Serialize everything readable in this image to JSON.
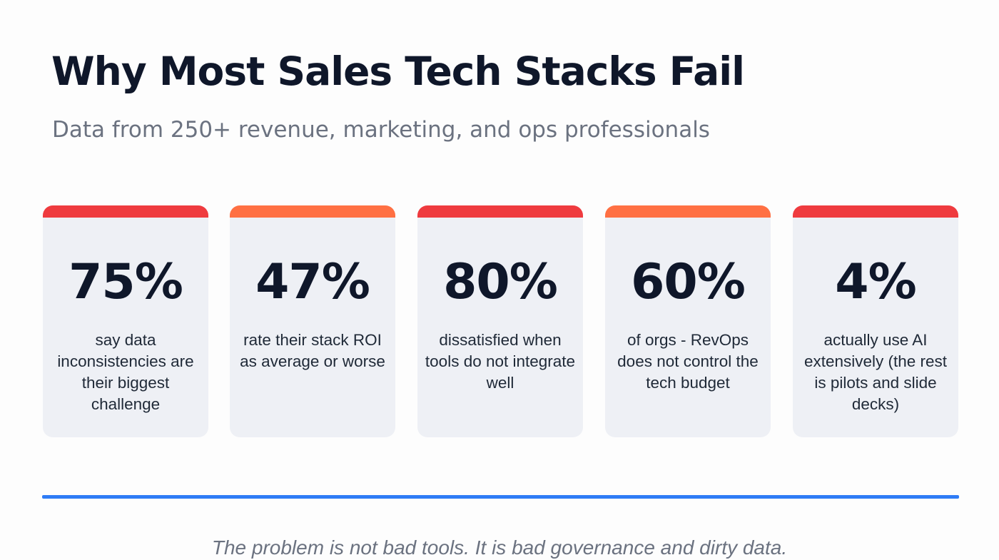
{
  "header": {
    "title": "Why Most Sales Tech Stacks Fail",
    "subtitle": "Data from 250+ revenue, marketing, and ops professionals"
  },
  "stats": [
    {
      "value": "75%",
      "description": "say data inconsistencies are their biggest challenge",
      "accent_color": "#ef3b3f"
    },
    {
      "value": "47%",
      "description": "rate their stack ROI as average or worse",
      "accent_color": "#ff7043"
    },
    {
      "value": "80%",
      "description": "dissatisfied when tools do not integrate well",
      "accent_color": "#ef3b3f"
    },
    {
      "value": "60%",
      "description": "of orgs - RevOps does not control the tech budget",
      "accent_color": "#ff7043"
    },
    {
      "value": "4%",
      "description": "actually use AI extensively (the rest is pilots and slide decks)",
      "accent_color": "#ef3b3f"
    }
  ],
  "divider_color": "#2f7cf6",
  "footer": {
    "text": "The problem is not bad tools. It is bad governance and dirty data."
  }
}
